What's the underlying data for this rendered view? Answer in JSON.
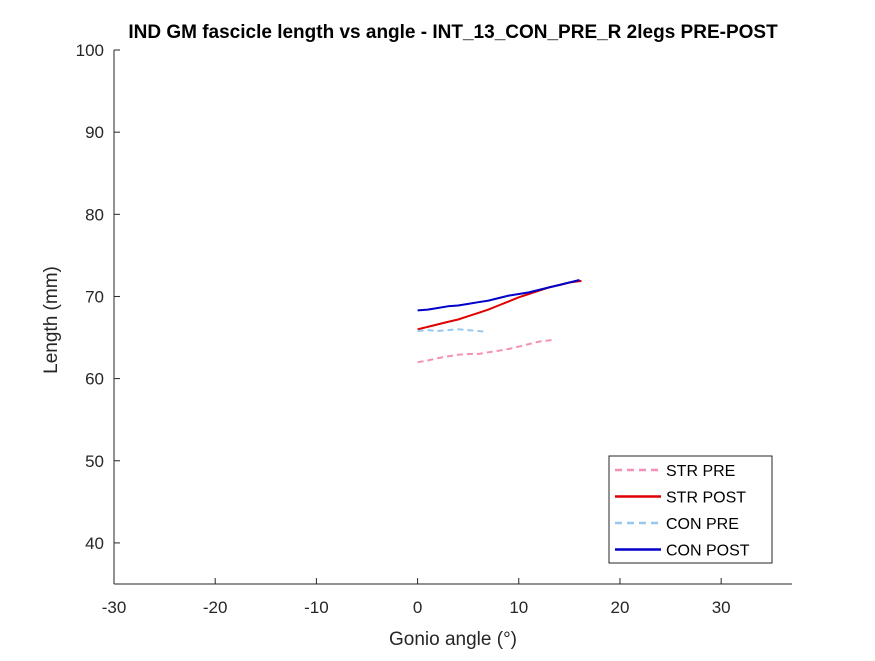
{
  "chart_data": {
    "type": "line",
    "title": "IND GM fascicle length vs angle - INT_13_CON_PRE_R 2legs PRE-POST",
    "xlabel": "Gonio angle (°)",
    "ylabel": "Length (mm)",
    "xlim": [
      -30,
      37
    ],
    "ylim": [
      35,
      100
    ],
    "xticks": [
      -30,
      -20,
      -10,
      0,
      10,
      20,
      30
    ],
    "yticks": [
      40,
      50,
      60,
      70,
      80,
      90,
      100
    ],
    "grid": false,
    "legend_position": "bottom-right",
    "series": [
      {
        "name": "STR PRE",
        "color": "#f590b8",
        "dashed": true,
        "x": [
          0,
          1,
          2,
          3,
          4,
          5,
          6,
          7,
          8,
          9,
          10,
          11,
          12,
          13.3
        ],
        "y": [
          62.0,
          62.2,
          62.5,
          62.7,
          62.9,
          63.0,
          63.0,
          63.2,
          63.4,
          63.6,
          63.9,
          64.2,
          64.5,
          64.7
        ]
      },
      {
        "name": "STR POST",
        "color": "#e00000",
        "dashed": false,
        "x": [
          0,
          1,
          2,
          3,
          4,
          5,
          6,
          7,
          8,
          9,
          10,
          11,
          12,
          13,
          14,
          15,
          16.2
        ],
        "y": [
          66.0,
          66.3,
          66.6,
          66.9,
          67.2,
          67.6,
          68.0,
          68.4,
          68.9,
          69.4,
          69.9,
          70.3,
          70.7,
          71.1,
          71.4,
          71.7,
          71.9
        ]
      },
      {
        "name": "CON PRE",
        "color": "#96c8f0",
        "dashed": true,
        "x": [
          0,
          1,
          2,
          3,
          4,
          5,
          6,
          6.8
        ],
        "y": [
          65.8,
          65.9,
          65.8,
          65.9,
          66.0,
          65.9,
          65.8,
          65.7
        ]
      },
      {
        "name": "CON POST",
        "color": "#0000c8",
        "dashed": false,
        "x": [
          0,
          1,
          2,
          3,
          4,
          5,
          6,
          7,
          8,
          9,
          10,
          11,
          12,
          13,
          14,
          15,
          16
        ],
        "y": [
          68.3,
          68.4,
          68.6,
          68.8,
          68.9,
          69.1,
          69.3,
          69.5,
          69.8,
          70.1,
          70.3,
          70.5,
          70.8,
          71.1,
          71.4,
          71.7,
          72.0
        ]
      }
    ]
  }
}
